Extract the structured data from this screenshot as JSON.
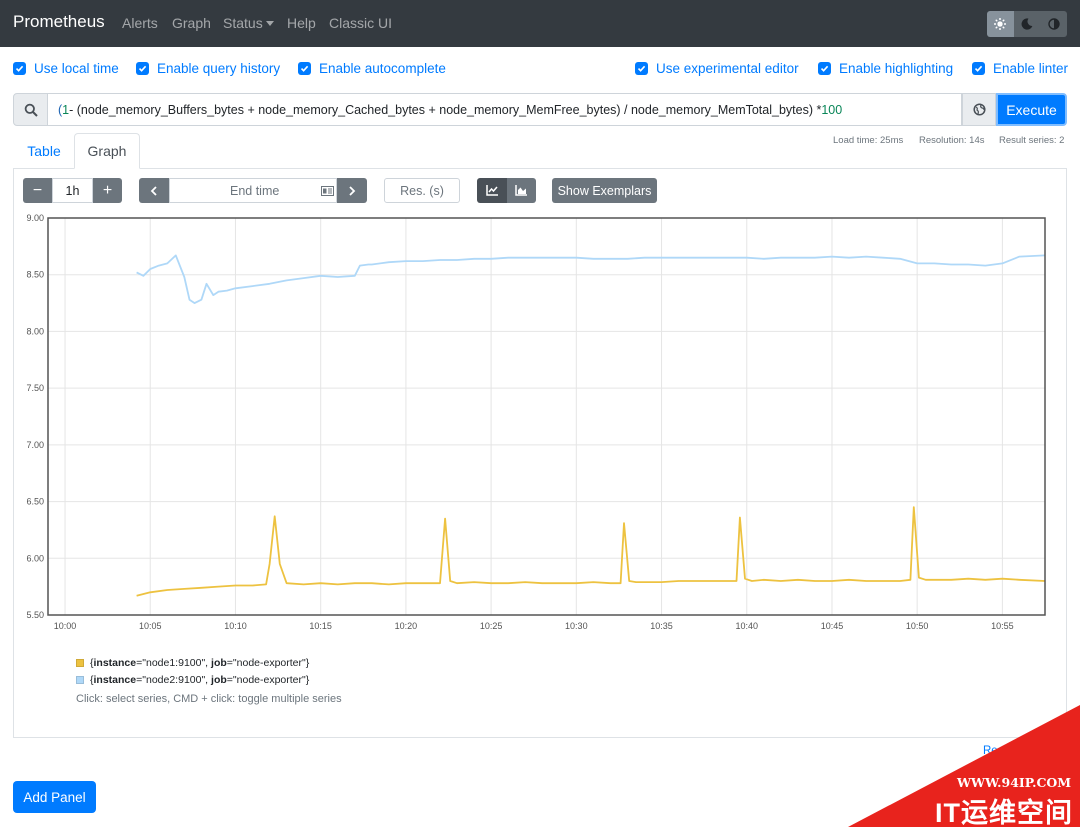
{
  "navbar": {
    "brand": "Prometheus",
    "links": [
      "Alerts",
      "Graph",
      "Status",
      "Help",
      "Classic UI"
    ],
    "theme_buttons": [
      "light-theme-icon",
      "dark-theme-icon",
      "browser-theme-icon"
    ]
  },
  "options": {
    "local_time": "Use local time",
    "query_history": "Enable query history",
    "autocomplete": "Enable autocomplete",
    "experimental_editor": "Use experimental editor",
    "highlighting": "Enable highlighting",
    "linter": "Enable linter"
  },
  "query": {
    "open": "(",
    "start_num": "1",
    "body": "- (node_memory_Buffers_bytes + node_memory_Cached_bytes + node_memory_MemFree_bytes) / node_memory_MemTotal_bytes) * ",
    "end_num": "100",
    "execute": "Execute"
  },
  "stats": {
    "load_time": "Load time: 25ms",
    "resolution": "Resolution: 14s",
    "result_series": "Result series: 2"
  },
  "tabs": [
    "Table",
    "Graph"
  ],
  "graph_controls": {
    "minus": "−",
    "range": "1h",
    "plus": "+",
    "end_time_placeholder": "End time",
    "res_placeholder": "Res. (s)",
    "show_exemplars": "Show Exemplars"
  },
  "chart_data": {
    "type": "line",
    "xlabel": "",
    "ylabel": "",
    "x_ticks": [
      "10:00",
      "10:05",
      "10:10",
      "10:15",
      "10:20",
      "10:25",
      "10:30",
      "10:35",
      "10:40",
      "10:45",
      "10:50",
      "10:55"
    ],
    "y_ticks": [
      "9.00",
      "8.50",
      "8.00",
      "7.50",
      "7.00",
      "6.50",
      "6.00",
      "5.50"
    ],
    "ylim": [
      5.5,
      9.0
    ],
    "xlim_minutes": [
      -1,
      57.5
    ],
    "grid": true,
    "series": [
      {
        "name": "{instance=\"node1:9100\", job=\"node-exporter\"}",
        "color": "#edc240",
        "x": [
          4.2,
          5,
          6,
          7,
          8,
          9,
          10,
          11,
          11.8,
          12,
          12.3,
          12.6,
          13,
          14,
          15,
          16,
          17,
          18,
          19,
          20,
          21,
          22,
          22.3,
          22.6,
          23,
          24,
          25,
          26,
          27,
          28,
          29,
          30,
          31,
          32,
          32.6,
          32.8,
          33.1,
          33.5,
          34,
          35,
          36,
          37,
          38,
          39,
          39.4,
          39.6,
          39.9,
          40.3,
          41,
          42,
          43,
          44,
          45,
          46,
          47,
          48,
          49,
          49.6,
          49.8,
          50.1,
          50.5,
          51,
          52,
          53,
          54,
          55,
          56,
          57.5
        ],
        "values": [
          5.67,
          5.7,
          5.72,
          5.73,
          5.74,
          5.75,
          5.76,
          5.76,
          5.77,
          5.95,
          6.37,
          5.95,
          5.78,
          5.77,
          5.78,
          5.77,
          5.78,
          5.78,
          5.77,
          5.78,
          5.78,
          5.78,
          6.35,
          5.8,
          5.78,
          5.79,
          5.78,
          5.78,
          5.79,
          5.78,
          5.78,
          5.78,
          5.79,
          5.78,
          5.78,
          6.31,
          5.8,
          5.79,
          5.79,
          5.79,
          5.8,
          5.8,
          5.8,
          5.8,
          5.8,
          6.36,
          5.82,
          5.8,
          5.81,
          5.8,
          5.81,
          5.8,
          5.8,
          5.81,
          5.8,
          5.8,
          5.8,
          5.81,
          6.45,
          5.83,
          5.81,
          5.81,
          5.81,
          5.82,
          5.81,
          5.82,
          5.81,
          5.8
        ]
      },
      {
        "name": "{instance=\"node2:9100\", job=\"node-exporter\"}",
        "color": "#afd8f8",
        "x": [
          4.2,
          4.6,
          5,
          5.5,
          6,
          6.5,
          7,
          7.3,
          7.6,
          8,
          8.3,
          8.7,
          9,
          9.5,
          10,
          11,
          12,
          13,
          14,
          15,
          16,
          17,
          17.3,
          17.8,
          18,
          19,
          20,
          21,
          22,
          23,
          24,
          25,
          26,
          27,
          28,
          29,
          30,
          31,
          32,
          33,
          34,
          35,
          36,
          37,
          38,
          39,
          40,
          41,
          42,
          43,
          44,
          45,
          46,
          47,
          48,
          49,
          50,
          51,
          52,
          53,
          54,
          55,
          56,
          57.5
        ],
        "values": [
          8.52,
          8.49,
          8.55,
          8.58,
          8.6,
          8.67,
          8.48,
          8.28,
          8.25,
          8.28,
          8.42,
          8.32,
          8.35,
          8.36,
          8.38,
          8.4,
          8.42,
          8.45,
          8.47,
          8.49,
          8.48,
          8.49,
          8.58,
          8.59,
          8.59,
          8.61,
          8.62,
          8.62,
          8.63,
          8.63,
          8.64,
          8.64,
          8.65,
          8.65,
          8.65,
          8.65,
          8.65,
          8.64,
          8.64,
          8.64,
          8.65,
          8.65,
          8.65,
          8.65,
          8.65,
          8.65,
          8.65,
          8.64,
          8.65,
          8.65,
          8.65,
          8.66,
          8.65,
          8.66,
          8.65,
          8.64,
          8.6,
          8.6,
          8.59,
          8.59,
          8.58,
          8.6,
          8.66,
          8.67
        ]
      }
    ]
  },
  "legend_hint": "Click: select series, CMD + click: toggle multiple series",
  "legend": [
    {
      "prefix": "{",
      "k1": "instance",
      "v1": "=\"node1:9100\", ",
      "k2": "job",
      "v2": "=\"node-exporter\"}",
      "color": "#edc240"
    },
    {
      "prefix": "{",
      "k1": "instance",
      "v1": "=\"node2:9100\", ",
      "k2": "job",
      "v2": "=\"node-exporter\"}",
      "color": "#afd8f8"
    }
  ],
  "remove_panel": "Re",
  "add_panel": "Add Panel",
  "watermark": {
    "url": "WWW.94IP.COM",
    "name": "IT运维空间"
  }
}
